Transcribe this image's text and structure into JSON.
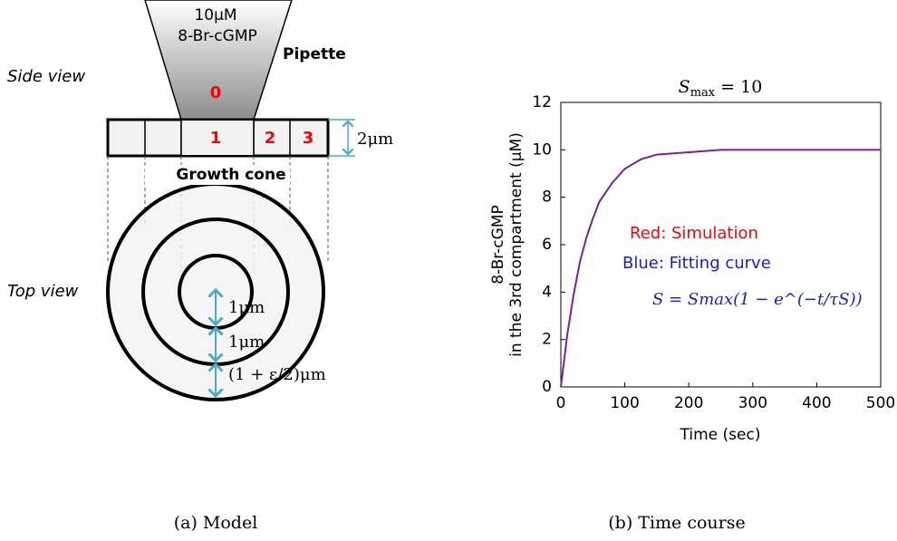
{
  "diagram": {
    "pipette_concentration": "10μM",
    "pipette_drug": "8-Br-cGMP",
    "pipette_label": "Pipette",
    "compartment_0": "0",
    "compartment_1": "1",
    "compartment_2": "2",
    "compartment_3": "3",
    "height_label": "2μm",
    "side_view": "Side view",
    "top_view": "Top view",
    "growth_cone": "Growth cone",
    "ring_1": "1μm",
    "ring_2": "1μm",
    "ring_3": "(1 + ε/2)μm",
    "caption": "(a) Model"
  },
  "chart_data": {
    "type": "line",
    "title_symbol": "S",
    "title_subscript": "max",
    "title_rest": " = 10",
    "x_label": "Time (sec)",
    "y_label": [
      "8-Br-cGMP",
      "in the 3rd compartment (μM)"
    ],
    "x": [
      0,
      10,
      20,
      30,
      40,
      50,
      60,
      80,
      100,
      125,
      150,
      200,
      250,
      300,
      400,
      500
    ],
    "series": [
      {
        "color": "#7a1fa2",
        "values": [
          0,
          2.2,
          3.9,
          5.3,
          6.3,
          7.1,
          7.8,
          8.6,
          9.2,
          9.6,
          9.8,
          9.9,
          10,
          10,
          10,
          10
        ]
      }
    ],
    "xlim": [
      0,
      500
    ],
    "ylim": [
      0,
      12
    ],
    "xticks": [
      0,
      100,
      200,
      300,
      400,
      500
    ],
    "yticks": [
      0,
      2,
      4,
      6,
      8,
      10,
      12
    ],
    "annotations": [
      "Red: Simulation",
      "Blue: Fitting curve",
      "S = Smax(1 − e^(−t/τS))"
    ],
    "annotation_colors": [
      "#ff0000",
      "#1a1adc",
      "#1a1adc"
    ],
    "caption": "(b) Time course"
  }
}
